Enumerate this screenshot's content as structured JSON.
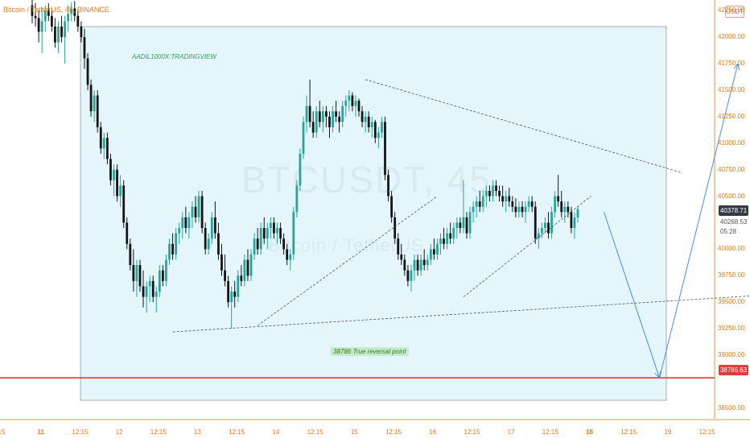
{
  "header": {
    "symbol_line": "Bitcoin / TetherUS, 45, BINANCE"
  },
  "price_axis": {
    "unit": "USDT",
    "labels": [
      "42250.00",
      "42000.00",
      "41750.00",
      "41500.00",
      "41250.00",
      "41000.00",
      "40750.00",
      "40500.00",
      "40000.00",
      "39750.00",
      "39500.00",
      "39250.00",
      "39000.00",
      "38500.00"
    ],
    "last_price": "40378.71",
    "current_price": "40268.53",
    "countdown": "05:28",
    "support_price": "38786.63"
  },
  "time_axis": {
    "labels": [
      "15",
      "11",
      "12:15",
      "12",
      "12:15",
      "13",
      "12:15",
      "14",
      "12:15",
      "15",
      "12:15",
      "16",
      "12:15",
      "17",
      "12:15",
      "18",
      "12:15",
      "19",
      "12:15"
    ],
    "bold": [
      false,
      true,
      false,
      false,
      false,
      false,
      false,
      false,
      false,
      false,
      false,
      false,
      false,
      false,
      false,
      true,
      false,
      false,
      false
    ]
  },
  "annotations": {
    "author": "AADIL1000X:TRADINGVIEW",
    "reversal": "38786 True reversal point"
  },
  "watermark": {
    "ticker": "BTCUSDT, 45",
    "pair": "Bitcoin / TetherUS"
  },
  "colors": {
    "up": "#26a69a",
    "down": "#151515",
    "support_line": "#e23b3b",
    "projection": "#4a8fd6",
    "zone_fill": "#e4f6fc",
    "zone_border": "#7a7a7a"
  },
  "chart_data": {
    "type": "candlestick",
    "title": "Bitcoin / TetherUS, 45, BINANCE",
    "y_range": [
      38400,
      42350
    ],
    "x_range_bars": [
      0,
      213
    ],
    "candles": [
      [
        42300,
        42350,
        42130,
        42200
      ],
      [
        42200,
        42320,
        42100,
        42180
      ],
      [
        42180,
        42250,
        41950,
        42050
      ],
      [
        42050,
        42280,
        41850,
        42150
      ],
      [
        42150,
        42300,
        42050,
        42250
      ],
      [
        42250,
        42320,
        42150,
        42200
      ],
      [
        42200,
        42260,
        42050,
        42100
      ],
      [
        42100,
        42180,
        41900,
        41950
      ],
      [
        41950,
        42150,
        41850,
        42100
      ],
      [
        42100,
        42200,
        41950,
        42000
      ],
      [
        42000,
        42200,
        41750,
        42150
      ],
      [
        42150,
        42300,
        42050,
        42220
      ],
      [
        42220,
        42330,
        42150,
        42270
      ],
      [
        42270,
        42340,
        42150,
        42200
      ],
      [
        42200,
        42260,
        42050,
        42100
      ],
      [
        42100,
        42150,
        41950,
        42000
      ],
      [
        42000,
        42080,
        41700,
        41800
      ],
      [
        41800,
        41850,
        41500,
        41550
      ],
      [
        41550,
        41600,
        41250,
        41300
      ],
      [
        41300,
        41500,
        41200,
        41450
      ],
      [
        41450,
        41500,
        41100,
        41150
      ],
      [
        41150,
        41200,
        40900,
        40950
      ],
      [
        40950,
        41100,
        40850,
        41050
      ],
      [
        41050,
        41100,
        40800,
        40850
      ],
      [
        40850,
        40900,
        40600,
        40650
      ],
      [
        40650,
        40800,
        40500,
        40750
      ],
      [
        40750,
        40800,
        40450,
        40500
      ],
      [
        40500,
        40700,
        40400,
        40600
      ],
      [
        40600,
        40650,
        40200,
        40250
      ],
      [
        40250,
        40300,
        40000,
        40050
      ],
      [
        40050,
        40100,
        39800,
        39850
      ],
      [
        39850,
        40000,
        39600,
        39700
      ],
      [
        39700,
        39900,
        39550,
        39850
      ],
      [
        39850,
        39900,
        39600,
        39650
      ],
      [
        39650,
        39800,
        39450,
        39550
      ],
      [
        39550,
        39700,
        39400,
        39650
      ],
      [
        39650,
        39750,
        39500,
        39700
      ],
      [
        39700,
        39750,
        39500,
        39550
      ],
      [
        39550,
        39650,
        39400,
        39600
      ],
      [
        39600,
        39850,
        39550,
        39800
      ],
      [
        39800,
        39850,
        39650,
        39700
      ],
      [
        39700,
        39950,
        39650,
        39900
      ],
      [
        39900,
        40100,
        39850,
        40050
      ],
      [
        40050,
        40150,
        39900,
        39950
      ],
      [
        39950,
        40200,
        39900,
        40150
      ],
      [
        40150,
        40250,
        40050,
        40200
      ],
      [
        40200,
        40350,
        40100,
        40300
      ],
      [
        40300,
        40400,
        40150,
        40200
      ],
      [
        40200,
        40350,
        40100,
        40300
      ],
      [
        40300,
        40450,
        40200,
        40400
      ],
      [
        40400,
        40500,
        40250,
        40300
      ],
      [
        40300,
        40550,
        40250,
        40500
      ],
      [
        40500,
        40550,
        40150,
        40200
      ],
      [
        40200,
        40250,
        39950,
        40000
      ],
      [
        40000,
        40150,
        39950,
        40100
      ],
      [
        40100,
        40350,
        40050,
        40300
      ],
      [
        40300,
        40450,
        40100,
        40150
      ],
      [
        40150,
        40250,
        39900,
        39950
      ],
      [
        39950,
        40050,
        39750,
        39800
      ],
      [
        39800,
        39950,
        39650,
        39700
      ],
      [
        39700,
        39750,
        39450,
        39500
      ],
      [
        39500,
        39650,
        39250,
        39600
      ],
      [
        39600,
        39700,
        39450,
        39550
      ],
      [
        39550,
        39800,
        39500,
        39750
      ],
      [
        39750,
        39850,
        39650,
        39700
      ],
      [
        39700,
        39950,
        39650,
        39900
      ],
      [
        39900,
        40000,
        39700,
        39750
      ],
      [
        39750,
        40000,
        39700,
        39950
      ],
      [
        39950,
        40150,
        39900,
        40100
      ],
      [
        40100,
        40200,
        39950,
        40000
      ],
      [
        40000,
        40250,
        39950,
        40200
      ],
      [
        40200,
        40300,
        40050,
        40100
      ],
      [
        40100,
        40250,
        40000,
        40200
      ],
      [
        40200,
        40300,
        40100,
        40250
      ],
      [
        40250,
        40300,
        40100,
        40150
      ],
      [
        40150,
        40250,
        40050,
        40200
      ],
      [
        40200,
        40250,
        40050,
        40100
      ],
      [
        40100,
        40150,
        39950,
        40000
      ],
      [
        40000,
        40050,
        39850,
        39900
      ],
      [
        39900,
        40000,
        39800,
        39950
      ],
      [
        39950,
        40400,
        39900,
        40350
      ],
      [
        40350,
        40650,
        40300,
        40600
      ],
      [
        40600,
        40950,
        40550,
        40900
      ],
      [
        40900,
        41250,
        40850,
        41200
      ],
      [
        41200,
        41450,
        41100,
        41350
      ],
      [
        41350,
        41600,
        41150,
        41200
      ],
      [
        41200,
        41300,
        41050,
        41100
      ],
      [
        41100,
        41350,
        41050,
        41300
      ],
      [
        41300,
        41400,
        41150,
        41200
      ],
      [
        41200,
        41350,
        41100,
        41300
      ],
      [
        41300,
        41350,
        41150,
        41250
      ],
      [
        41250,
        41300,
        41050,
        41150
      ],
      [
        41150,
        41350,
        41100,
        41300
      ],
      [
        41300,
        41400,
        41200,
        41250
      ],
      [
        41250,
        41300,
        41100,
        41200
      ],
      [
        41200,
        41400,
        41150,
        41350
      ],
      [
        41350,
        41450,
        41250,
        41400
      ],
      [
        41400,
        41500,
        41300,
        41450
      ],
      [
        41450,
        41480,
        41300,
        41350
      ],
      [
        41350,
        41450,
        41250,
        41400
      ],
      [
        41400,
        41420,
        41250,
        41300
      ],
      [
        41300,
        41350,
        41150,
        41200
      ],
      [
        41200,
        41300,
        41100,
        41250
      ],
      [
        41250,
        41300,
        41100,
        41150
      ],
      [
        41150,
        41250,
        41050,
        41200
      ],
      [
        41200,
        41220,
        41000,
        41050
      ],
      [
        41050,
        41150,
        40950,
        41100
      ],
      [
        41100,
        41250,
        41050,
        41200
      ],
      [
        41200,
        41250,
        40650,
        40700
      ],
      [
        40700,
        40750,
        40450,
        40500
      ],
      [
        40500,
        40550,
        40250,
        40300
      ],
      [
        40300,
        40350,
        40050,
        40100
      ],
      [
        40100,
        40150,
        39900,
        39950
      ],
      [
        39950,
        40050,
        39850,
        39900
      ],
      [
        39900,
        39950,
        39750,
        39800
      ],
      [
        39800,
        39850,
        39650,
        39700
      ],
      [
        39700,
        39850,
        39600,
        39800
      ],
      [
        39800,
        39950,
        39700,
        39900
      ],
      [
        39900,
        39950,
        39750,
        39800
      ],
      [
        39800,
        39950,
        39750,
        39900
      ],
      [
        39900,
        40000,
        39800,
        39850
      ],
      [
        39850,
        39950,
        39800,
        39900
      ],
      [
        39900,
        40050,
        39850,
        40000
      ],
      [
        40000,
        40100,
        39900,
        39950
      ],
      [
        39950,
        40100,
        39900,
        40050
      ],
      [
        40050,
        40150,
        39950,
        40100
      ],
      [
        40100,
        40200,
        40000,
        40050
      ],
      [
        40050,
        40200,
        40000,
        40150
      ],
      [
        40150,
        40250,
        40050,
        40100
      ],
      [
        40100,
        40250,
        40050,
        40200
      ],
      [
        40200,
        40300,
        40100,
        40250
      ],
      [
        40250,
        40300,
        40150,
        40200
      ],
      [
        40200,
        40650,
        40150,
        40300
      ],
      [
        40300,
        40350,
        40100,
        40150
      ],
      [
        40150,
        40400,
        40100,
        40350
      ],
      [
        40350,
        40450,
        40250,
        40400
      ],
      [
        40400,
        40500,
        40300,
        40450
      ],
      [
        40450,
        40550,
        40350,
        40400
      ],
      [
        40400,
        40550,
        40350,
        40500
      ],
      [
        40500,
        40600,
        40400,
        40550
      ],
      [
        40550,
        40600,
        40450,
        40500
      ],
      [
        40500,
        40650,
        40450,
        40600
      ],
      [
        40600,
        40650,
        40500,
        40550
      ],
      [
        40550,
        40600,
        40450,
        40500
      ],
      [
        40500,
        40600,
        40400,
        40450
      ],
      [
        40450,
        40550,
        40350,
        40500
      ],
      [
        40500,
        40580,
        40400,
        40450
      ],
      [
        40450,
        40500,
        40350,
        40400
      ],
      [
        40400,
        40480,
        40300,
        40350
      ],
      [
        40350,
        40450,
        40300,
        40400
      ],
      [
        40400,
        40450,
        40300,
        40350
      ],
      [
        40350,
        40450,
        40250,
        40400
      ],
      [
        40400,
        40500,
        40350,
        40450
      ],
      [
        40450,
        40500,
        40350,
        40400
      ],
      [
        40400,
        40450,
        40050,
        40100
      ],
      [
        40100,
        40200,
        40000,
        40150
      ],
      [
        40150,
        40250,
        40100,
        40200
      ],
      [
        40200,
        40300,
        40150,
        40250
      ],
      [
        40250,
        40350,
        40100,
        40150
      ],
      [
        40150,
        40400,
        40100,
        40350
      ],
      [
        40350,
        40550,
        40300,
        40500
      ],
      [
        40500,
        40700,
        40400,
        40450
      ],
      [
        40450,
        40550,
        40300,
        40350
      ],
      [
        40350,
        40450,
        40250,
        40400
      ],
      [
        40400,
        40450,
        40300,
        40350
      ],
      [
        40350,
        40400,
        40150,
        40200
      ],
      [
        40200,
        40350,
        40100,
        40300
      ],
      [
        40300,
        40400,
        40250,
        40379
      ]
    ]
  },
  "drawings": {
    "triangle_upper": [
      [
        41600,
        102
      ],
      [
        40720,
        199
      ]
    ],
    "left_rising_line": [
      [
        39280,
        69
      ],
      [
        40500,
        124
      ]
    ],
    "mid_rising_line": [
      [
        39550,
        132
      ],
      [
        40500,
        171
      ]
    ],
    "long_bottom_line": [
      [
        39220,
        43
      ],
      [
        39590,
        236
      ]
    ],
    "projection_path": [
      [
        40350,
        175
      ],
      [
        38786,
        192
      ],
      [
        41750,
        216
      ]
    ],
    "support_level": 38786.63
  }
}
